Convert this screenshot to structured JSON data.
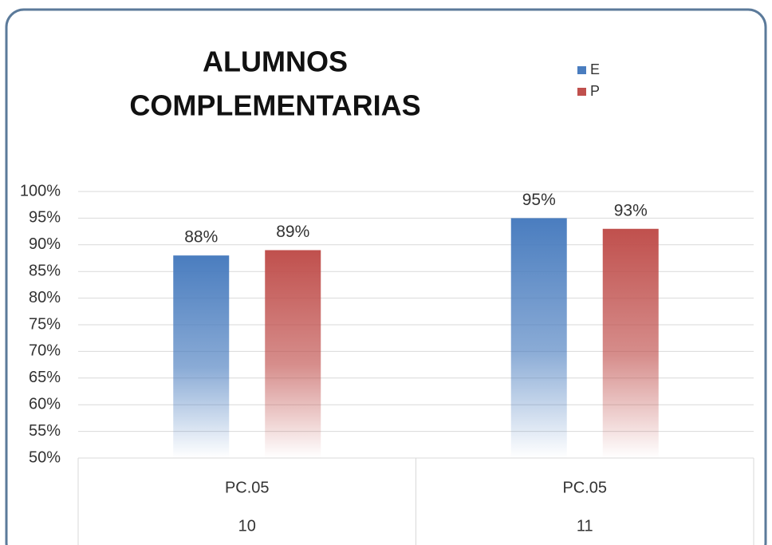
{
  "chart_data": {
    "type": "bar",
    "title": [
      "ALUMNOS",
      "COMPLEMENTARIAS"
    ],
    "categories": [
      [
        "PC.05",
        "10"
      ],
      [
        "PC.05",
        "11"
      ]
    ],
    "series": [
      {
        "name": "E",
        "color": "#4a7dbf",
        "values": [
          88,
          95
        ],
        "value_labels": [
          "88%",
          "95%"
        ]
      },
      {
        "name": "P",
        "color": "#c0504d",
        "values": [
          89,
          93
        ],
        "value_labels": [
          "89%",
          "93%"
        ]
      }
    ],
    "ylim": [
      50,
      100
    ],
    "yticks": [
      {
        "value": 50,
        "label": "50%"
      },
      {
        "value": 55,
        "label": "55%"
      },
      {
        "value": 60,
        "label": "60%"
      },
      {
        "value": 65,
        "label": "65%"
      },
      {
        "value": 70,
        "label": "70%"
      },
      {
        "value": 75,
        "label": "75%"
      },
      {
        "value": 80,
        "label": "80%"
      },
      {
        "value": 85,
        "label": "85%"
      },
      {
        "value": 90,
        "label": "90%"
      },
      {
        "value": 95,
        "label": "95%"
      },
      {
        "value": 100,
        "label": "100%"
      }
    ],
    "grid": true,
    "legend": "top-right"
  }
}
